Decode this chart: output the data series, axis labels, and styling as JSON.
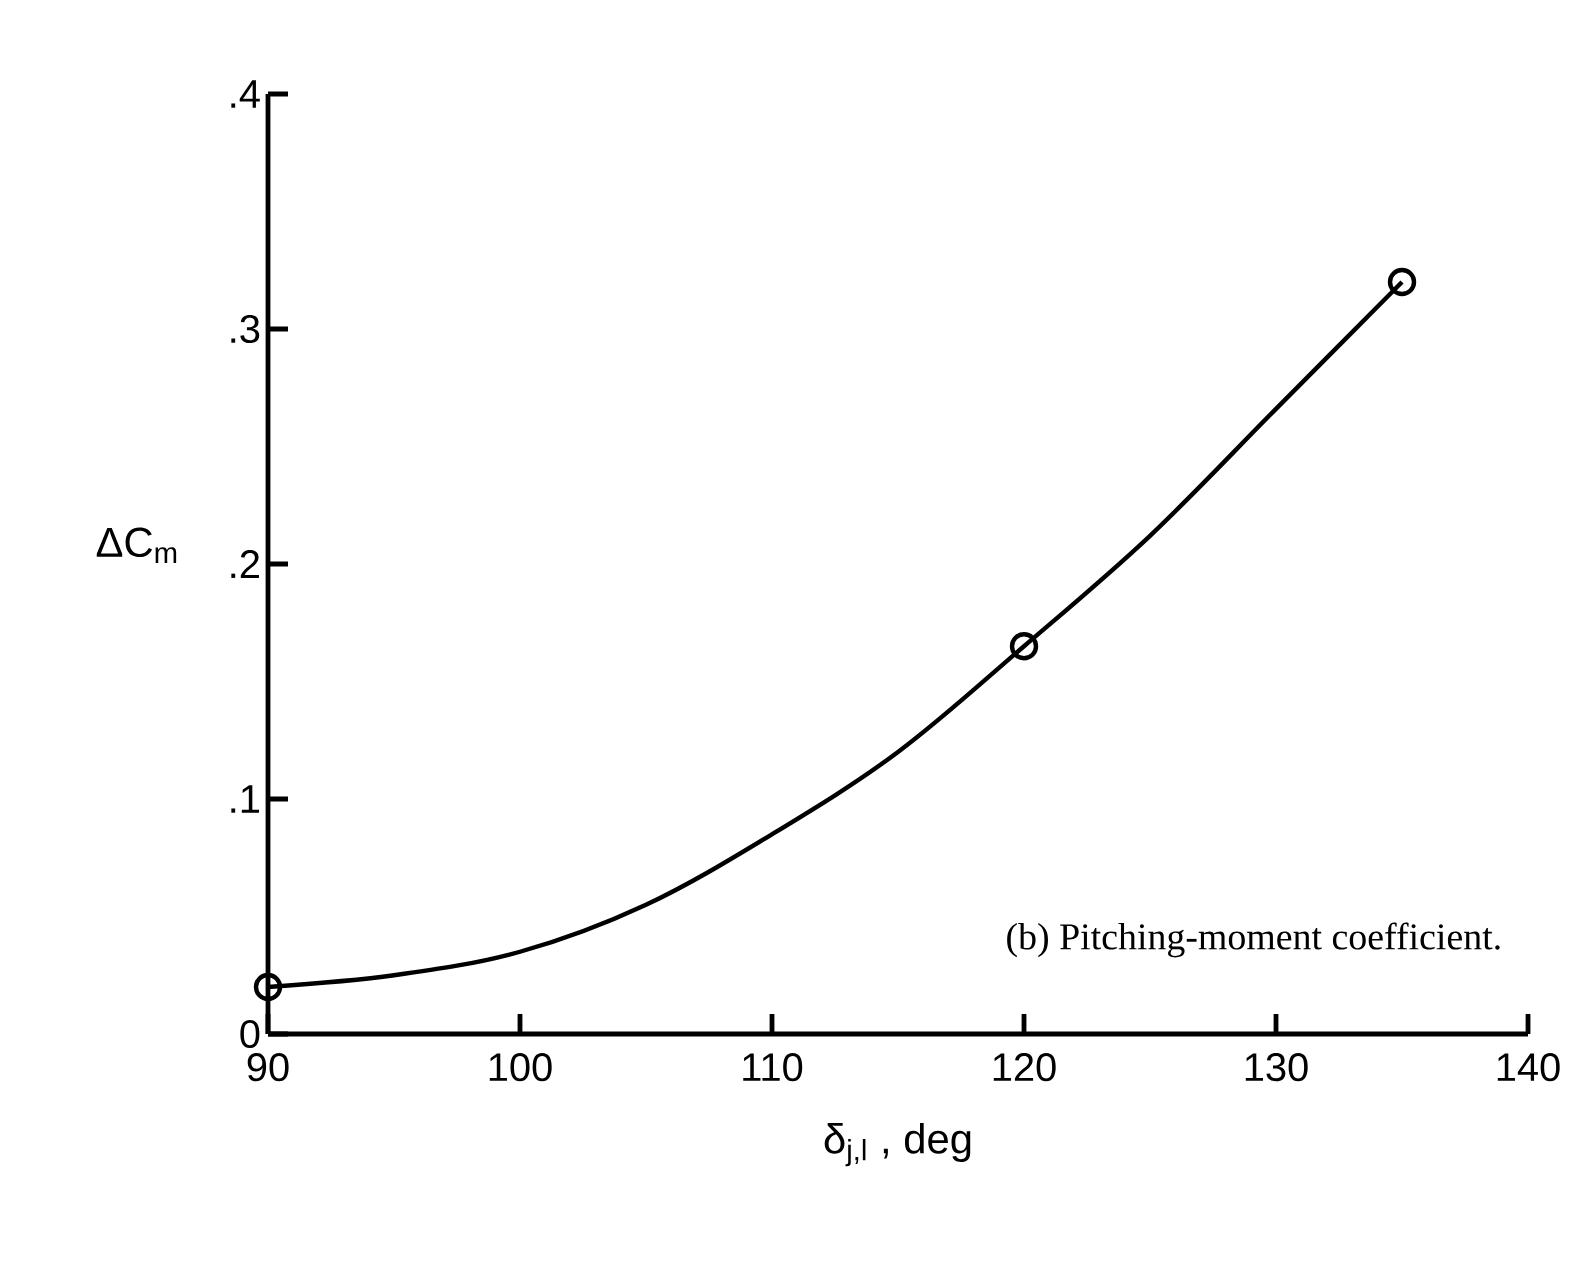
{
  "chart_data": {
    "type": "scatter",
    "xlabel": "δ$_{j,l}$ , deg",
    "ylabel": "ΔC$_{m}$",
    "annotations": [
      "(b) Pitching-moment coefficient."
    ],
    "xlim": [
      90,
      140
    ],
    "xticks": [
      90,
      100,
      110,
      120,
      130,
      140
    ],
    "ylim": [
      0,
      0.4
    ],
    "yticks": [
      0,
      {
        "value": 0.1,
        "label": ".1"
      },
      {
        "value": 0.2,
        "label": ".2"
      },
      {
        "value": 0.3,
        "label": ".3"
      },
      {
        "value": 0.4,
        "label": ".4"
      }
    ],
    "grid": false,
    "series": [
      {
        "color": "#000000",
        "marker": "circle",
        "x": [
          90,
          120,
          135
        ],
        "values": [
          0.02,
          0.165,
          0.32
        ]
      },
      {
        "type": "line",
        "color": "#000000",
        "marker": "none",
        "line_style": "solid",
        "x": [
          90,
          95,
          100,
          105,
          110,
          115,
          120,
          125,
          130,
          135
        ],
        "values": [
          0.02,
          0.025,
          0.035,
          0.055,
          0.085,
          0.12,
          0.165,
          0.212,
          0.266,
          0.32
        ]
      }
    ]
  }
}
